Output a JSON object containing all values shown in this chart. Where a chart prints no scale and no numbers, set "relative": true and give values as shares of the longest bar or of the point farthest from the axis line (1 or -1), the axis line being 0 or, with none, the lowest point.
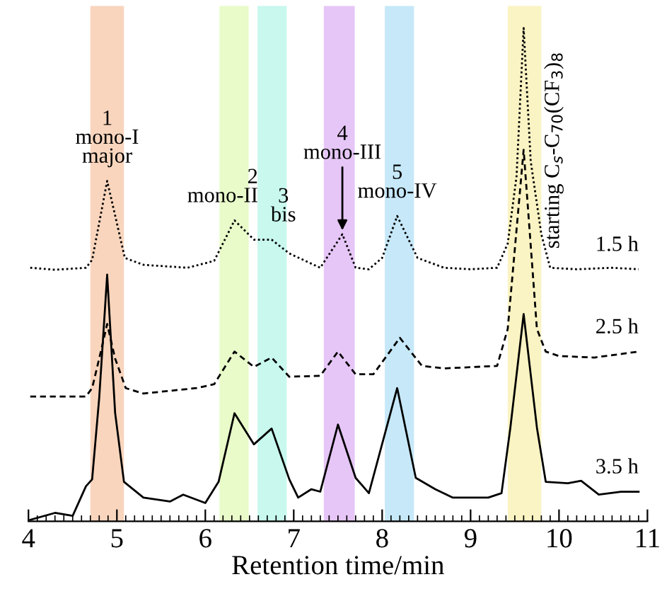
{
  "chart_data": {
    "type": "line",
    "relative": true,
    "xlabel": "Retention time/min",
    "xlim": [
      4,
      11
    ],
    "xticks": [
      4,
      5,
      6,
      7,
      8,
      9,
      10,
      11
    ],
    "grid": false,
    "legend": false,
    "series": [
      {
        "name": "1.5 h",
        "color": "#000000",
        "line_style": "dotted",
        "x": [
          4.02,
          4.3,
          4.65,
          4.72,
          4.8,
          4.89,
          4.98,
          5.09,
          5.3,
          5.8,
          6.1,
          6.33,
          6.55,
          6.75,
          6.95,
          7.3,
          7.55,
          7.7,
          7.85,
          8.0,
          8.17,
          8.4,
          8.7,
          9.0,
          9.3,
          9.42,
          9.52,
          9.6,
          9.68,
          9.8,
          9.9,
          10.2,
          10.6,
          10.9
        ],
        "values": [
          0.514,
          0.51,
          0.514,
          0.53,
          0.605,
          0.69,
          0.62,
          0.534,
          0.52,
          0.514,
          0.528,
          0.61,
          0.571,
          0.571,
          0.543,
          0.514,
          0.582,
          0.514,
          0.511,
          0.534,
          0.619,
          0.534,
          0.514,
          0.511,
          0.514,
          0.563,
          0.7,
          1.0,
          0.73,
          0.582,
          0.514,
          0.511,
          0.514,
          0.511
        ]
      },
      {
        "name": "2.5 h",
        "color": "#000000",
        "line_style": "dashed",
        "x": [
          4.02,
          4.65,
          4.72,
          4.8,
          4.89,
          4.98,
          5.1,
          5.3,
          5.9,
          6.1,
          6.33,
          6.55,
          6.75,
          6.95,
          7.3,
          7.5,
          7.7,
          7.9,
          8.2,
          8.45,
          8.7,
          9.3,
          9.42,
          9.6,
          9.75,
          9.85,
          10.0,
          10.4,
          10.9
        ],
        "values": [
          0.253,
          0.253,
          0.27,
          0.33,
          0.4,
          0.33,
          0.27,
          0.259,
          0.27,
          0.278,
          0.344,
          0.313,
          0.332,
          0.293,
          0.295,
          0.344,
          0.298,
          0.298,
          0.372,
          0.315,
          0.31,
          0.315,
          0.39,
          0.753,
          0.39,
          0.344,
          0.335,
          0.332,
          0.344
        ]
      },
      {
        "name": "3.5 h",
        "color": "#000000",
        "line_style": "solid",
        "x": [
          4.02,
          4.3,
          4.5,
          4.65,
          4.72,
          4.8,
          4.89,
          4.98,
          5.08,
          5.3,
          5.6,
          5.75,
          6.0,
          6.15,
          6.33,
          6.55,
          6.75,
          6.95,
          7.05,
          7.2,
          7.3,
          7.5,
          7.7,
          7.85,
          8.17,
          8.38,
          8.6,
          8.8,
          9.2,
          9.35,
          9.45,
          9.6,
          9.75,
          9.85,
          10.1,
          10.25,
          10.45,
          10.7,
          10.9
        ],
        "values": [
          0.003,
          0.017,
          0.011,
          0.071,
          0.085,
          0.25,
          0.5,
          0.22,
          0.08,
          0.048,
          0.04,
          0.054,
          0.037,
          0.08,
          0.219,
          0.156,
          0.188,
          0.085,
          0.048,
          0.065,
          0.06,
          0.196,
          0.088,
          0.057,
          0.27,
          0.088,
          0.065,
          0.048,
          0.048,
          0.057,
          0.19,
          0.42,
          0.19,
          0.08,
          0.077,
          0.082,
          0.054,
          0.06,
          0.06
        ]
      }
    ],
    "bands": [
      {
        "axis": "x",
        "from": 4.7,
        "to": 5.08,
        "color": "#f9d5bd"
      },
      {
        "axis": "x",
        "from": 6.16,
        "to": 6.49,
        "color": "#e8fbc9"
      },
      {
        "axis": "x",
        "from": 6.59,
        "to": 6.92,
        "color": "#c8f8ee"
      },
      {
        "axis": "x",
        "from": 7.34,
        "to": 7.69,
        "color": "#e6c6f6"
      },
      {
        "axis": "x",
        "from": 8.03,
        "to": 8.36,
        "color": "#c6e8f8"
      },
      {
        "axis": "x",
        "from": 9.42,
        "to": 9.8,
        "color": "#faf3c3",
        "label": "starting C$_{s}$-C$_{70}$(CF$_{3}$)$_{8}$"
      }
    ],
    "annotations": [
      {
        "text": "1\nmono-I\nmajor",
        "x": 4.89,
        "y": 0.69
      },
      {
        "text": "2\nmono-II",
        "x": 6.33,
        "y": 0.61
      },
      {
        "text": "3\nbis",
        "x": 6.75,
        "y": 0.571
      },
      {
        "text": "4\nmono-III",
        "x": 7.55,
        "y": 0.582
      },
      {
        "text": "5\nmono-IV",
        "x": 8.17,
        "y": 0.619
      }
    ]
  }
}
